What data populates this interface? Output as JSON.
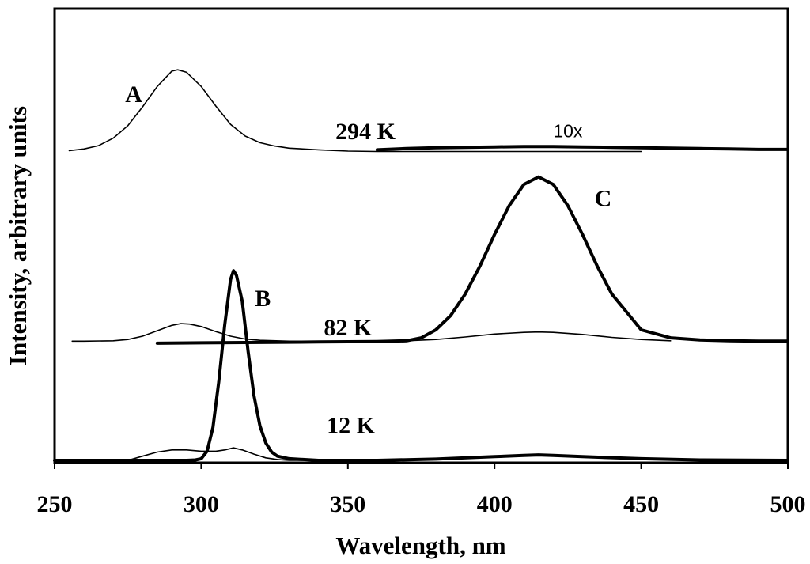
{
  "chart_data": {
    "type": "line",
    "xlabel": "Wavelength, nm",
    "ylabel": "Intensity, arbitrary units",
    "xlim": [
      250,
      500
    ],
    "x_ticks": [
      250,
      300,
      350,
      400,
      450,
      500
    ],
    "ylim": [
      0,
      1
    ],
    "y_ticks_shown": false,
    "grid": false,
    "legend": "none",
    "series": [
      {
        "name": "294 K",
        "weight": "thin",
        "x": [
          255,
          260,
          265,
          270,
          275,
          280,
          285,
          290,
          292,
          295,
          300,
          305,
          310,
          315,
          320,
          325,
          330,
          340,
          350,
          360,
          370,
          380,
          390,
          400,
          410,
          420,
          430,
          440,
          450
        ],
        "y": [
          0.743,
          0.747,
          0.755,
          0.773,
          0.803,
          0.848,
          0.897,
          0.934,
          0.937,
          0.931,
          0.897,
          0.85,
          0.806,
          0.778,
          0.762,
          0.754,
          0.749,
          0.745,
          0.742,
          0.741,
          0.741,
          0.741,
          0.741,
          0.741,
          0.741,
          0.741,
          0.741,
          0.741,
          0.741
        ]
      },
      {
        "name": "294 K (10x)",
        "weight": "bold",
        "x": [
          360,
          370,
          380,
          390,
          400,
          410,
          420,
          430,
          440,
          450,
          460,
          470,
          480,
          490,
          500
        ],
        "y": [
          0.745,
          0.748,
          0.75,
          0.751,
          0.752,
          0.753,
          0.753,
          0.752,
          0.751,
          0.75,
          0.749,
          0.748,
          0.747,
          0.746,
          0.746
        ]
      },
      {
        "name": "82 K",
        "weight": "thin",
        "x": [
          256,
          260,
          270,
          275,
          280,
          285,
          290,
          293,
          296,
          300,
          305,
          310,
          315,
          320,
          330,
          340,
          350,
          360,
          370,
          380,
          390,
          400,
          410,
          415,
          420,
          430,
          440,
          450,
          460
        ],
        "y": [
          0.286,
          0.286,
          0.287,
          0.29,
          0.298,
          0.311,
          0.324,
          0.328,
          0.327,
          0.321,
          0.309,
          0.298,
          0.291,
          0.288,
          0.286,
          0.286,
          0.286,
          0.286,
          0.287,
          0.29,
          0.296,
          0.303,
          0.307,
          0.308,
          0.307,
          0.302,
          0.295,
          0.29,
          0.287
        ]
      },
      {
        "name": "82 K (C)",
        "weight": "bold",
        "x": [
          285,
          300,
          320,
          340,
          360,
          370,
          375,
          380,
          385,
          390,
          395,
          400,
          405,
          410,
          415,
          420,
          425,
          430,
          435,
          440,
          450,
          460,
          470,
          480,
          490,
          500
        ],
        "y": [
          0.281,
          0.282,
          0.283,
          0.284,
          0.285,
          0.287,
          0.294,
          0.313,
          0.347,
          0.399,
          0.466,
          0.542,
          0.611,
          0.662,
          0.68,
          0.662,
          0.611,
          0.542,
          0.466,
          0.399,
          0.313,
          0.294,
          0.289,
          0.287,
          0.286,
          0.286
        ]
      },
      {
        "name": "12 K",
        "weight": "thin",
        "x": [
          275,
          280,
          285,
          290,
          295,
          300,
          305,
          308,
          311,
          314,
          318,
          322,
          326,
          330,
          340
        ],
        "y": [
          0.0,
          0.01,
          0.02,
          0.025,
          0.025,
          0.022,
          0.022,
          0.025,
          0.03,
          0.025,
          0.015,
          0.006,
          0.002,
          0.0,
          0.0
        ]
      },
      {
        "name": "12 K (B)",
        "weight": "bold",
        "x": [
          250,
          280,
          295,
          298,
          300,
          302,
          304,
          306,
          308,
          310,
          311,
          312,
          314,
          316,
          318,
          320,
          322,
          324,
          326,
          330,
          340,
          360,
          380,
          400,
          410,
          415,
          420,
          430,
          450,
          470,
          500
        ],
        "y": [
          0.0,
          0.0,
          0.0,
          0.001,
          0.004,
          0.022,
          0.079,
          0.189,
          0.325,
          0.434,
          0.455,
          0.444,
          0.381,
          0.261,
          0.155,
          0.083,
          0.042,
          0.02,
          0.01,
          0.004,
          0.0,
          0.0,
          0.003,
          0.009,
          0.012,
          0.013,
          0.012,
          0.009,
          0.004,
          0.001,
          0.0
        ]
      }
    ],
    "annotations": [
      {
        "id": "A",
        "text": "A",
        "x": 277,
        "y": 0.86
      },
      {
        "id": "B",
        "text": "B",
        "x": 321,
        "y": 0.37
      },
      {
        "id": "C",
        "text": "C",
        "x": 437,
        "y": 0.61
      },
      {
        "id": "t294",
        "text": "294 K",
        "x": 356,
        "y": 0.77
      },
      {
        "id": "t82",
        "text": "82 K",
        "x": 350,
        "y": 0.3
      },
      {
        "id": "t12",
        "text": "12 K",
        "x": 351,
        "y": 0.065
      },
      {
        "id": "ten",
        "text": "10x",
        "x": 425,
        "y": 0.775
      }
    ]
  }
}
